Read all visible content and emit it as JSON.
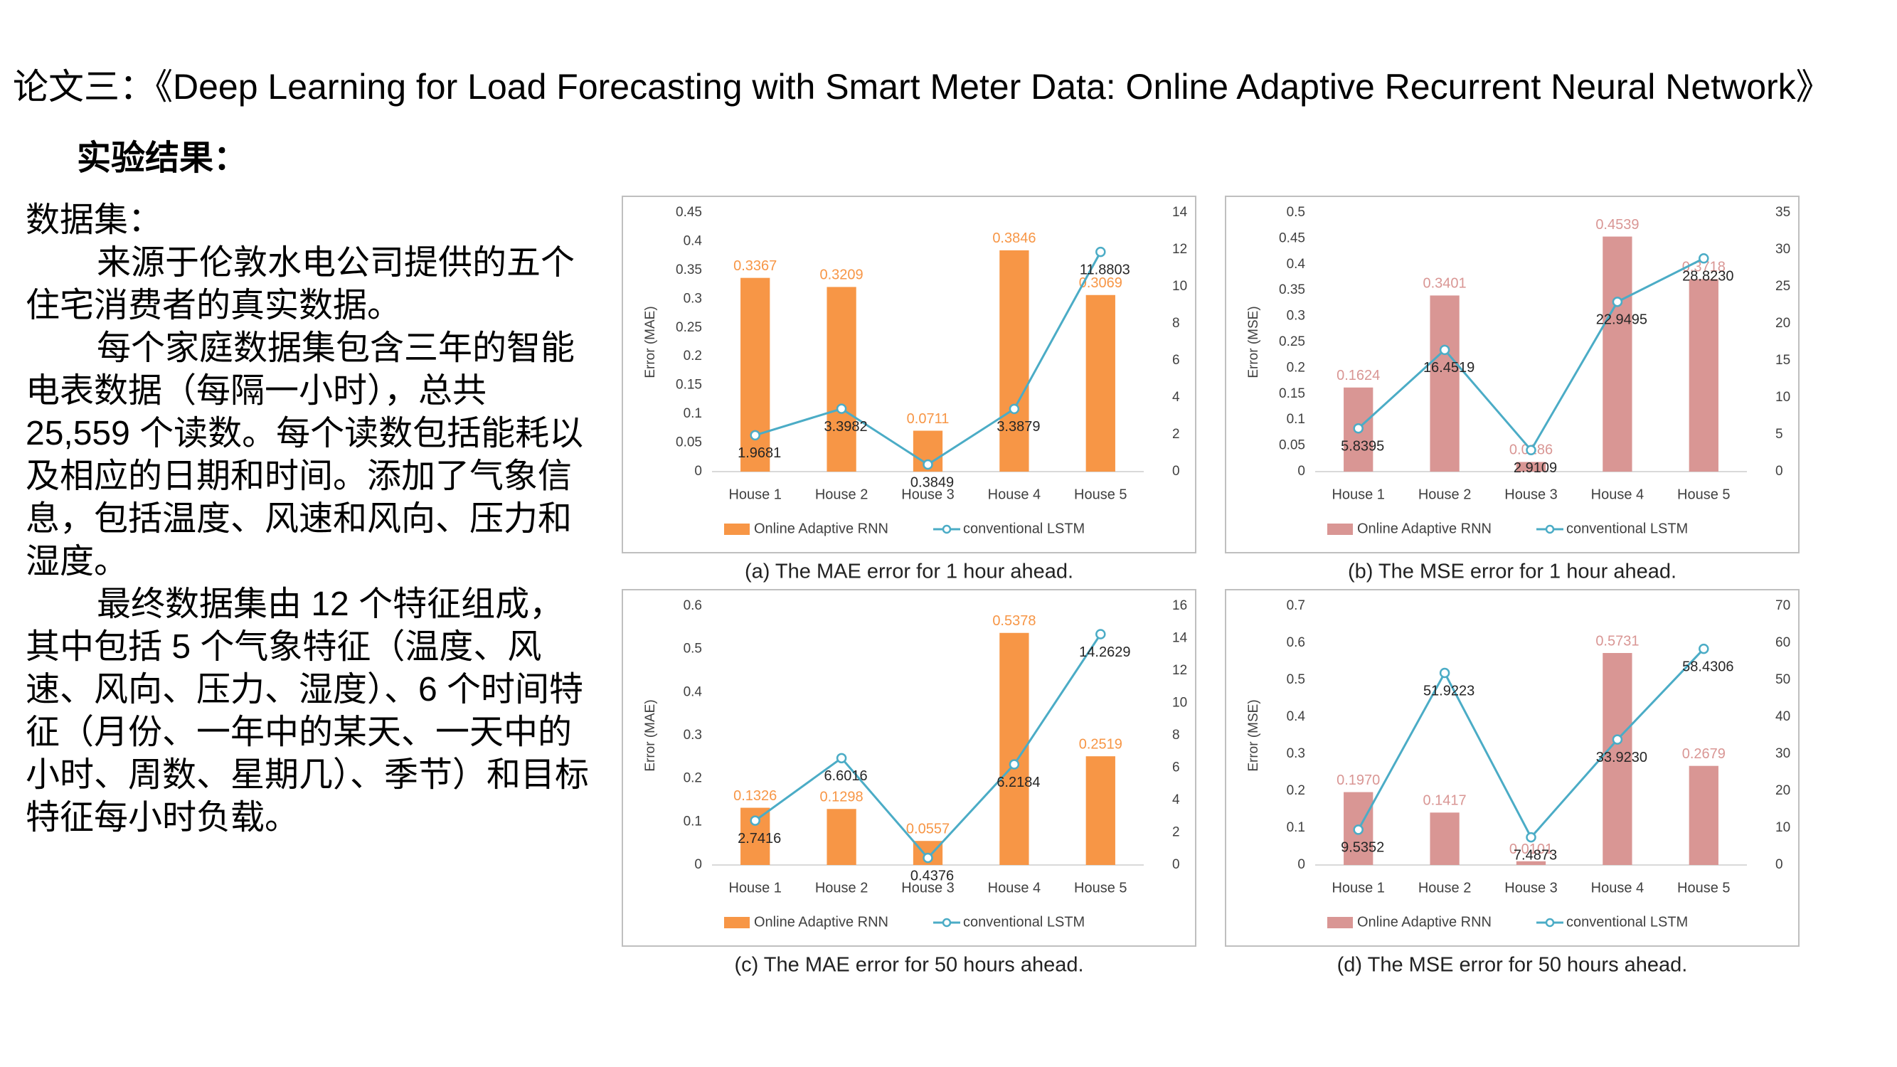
{
  "slide": {
    "title": "论文三：《Deep Learning for Load Forecasting with Smart Meter Data: Online Adaptive Recurrent Neural Network》",
    "heading": "实验结果：",
    "body": [
      "数据集：",
      "来源于伦敦水电公司提供的五个住宅消费者的真实数据。",
      "每个家庭数据集包含三年的智能电表数据（每隔一小时），总共 25,559 个读数。每个读数包括能耗以及相应的日期和时间。添加了气象信息，包括温度、风速和风向、压力和湿度。",
      "最终数据集由 12 个特征组成，其中包括 5 个气象特征（温度、风速、风向、压力、湿度）、6 个时间特征（月份、一年中的某天、一天中的小时、周数、星期几）、季节）和目标特征每小时负载。"
    ]
  },
  "chart_data": [
    {
      "type": "combo",
      "caption": "(a) The MAE error for 1 hour ahead.",
      "ylabel": "Error (MAE)",
      "categories": [
        "House 1",
        "House 2",
        "House 3",
        "House 4",
        "House 5"
      ],
      "series": [
        {
          "name": "Online Adaptive RNN",
          "type": "bar",
          "color": "#f79646",
          "values": [
            0.3367,
            0.3209,
            0.0711,
            0.3846,
            0.3069
          ]
        },
        {
          "name": "conventional LSTM",
          "type": "line",
          "axis": "y2",
          "color": "#4bacc6",
          "values": [
            1.9681,
            3.3982,
            0.3849,
            3.3879,
            11.8803
          ]
        }
      ],
      "ylim": [
        0,
        0.45
      ],
      "yticks": [
        0,
        0.05,
        0.1,
        0.15,
        0.2,
        0.25,
        0.3,
        0.35,
        0.4,
        0.45
      ],
      "y2lim": [
        0,
        14
      ],
      "y2ticks": [
        0,
        2,
        4,
        6,
        8,
        10,
        12,
        14
      ],
      "grid": false
    },
    {
      "type": "combo",
      "caption": "(b) The MSE error for 1 hour ahead.",
      "ylabel": "Error (MSE)",
      "categories": [
        "House 1",
        "House 2",
        "House 3",
        "House 4",
        "House 5"
      ],
      "series": [
        {
          "name": "Online Adaptive RNN",
          "type": "bar",
          "color": "#d99694",
          "values": [
            0.1624,
            0.3401,
            0.0186,
            0.4539,
            0.3718
          ]
        },
        {
          "name": "conventional LSTM",
          "type": "line",
          "axis": "y2",
          "color": "#4bacc6",
          "values": [
            5.8395,
            16.4519,
            2.9109,
            22.9495,
            28.823
          ],
          "value_labels": [
            "5.8395",
            "16.4519",
            "2.9109",
            "22.9495",
            "28.8230"
          ]
        }
      ],
      "ylim": [
        0,
        0.5
      ],
      "yticks": [
        0,
        0.05,
        0.1,
        0.15,
        0.2,
        0.25,
        0.3,
        0.35,
        0.4,
        0.45,
        0.5
      ],
      "y2lim": [
        0,
        35
      ],
      "y2ticks": [
        0,
        5,
        10,
        15,
        20,
        25,
        30,
        35
      ],
      "grid": false
    },
    {
      "type": "combo",
      "caption": "(c) The MAE error for 50 hours ahead.",
      "ylabel": "Error (MAE)",
      "categories": [
        "House 1",
        "House 2",
        "House 3",
        "House 4",
        "House 5"
      ],
      "series": [
        {
          "name": "Online Adaptive RNN",
          "type": "bar",
          "color": "#f79646",
          "values": [
            0.1326,
            0.1298,
            0.0557,
            0.5378,
            0.2519
          ]
        },
        {
          "name": "conventional LSTM",
          "type": "line",
          "axis": "y2",
          "color": "#4bacc6",
          "values": [
            2.7416,
            6.6016,
            0.4376,
            6.2184,
            14.2629
          ]
        }
      ],
      "ylim": [
        0,
        0.6
      ],
      "yticks": [
        0,
        0.1,
        0.2,
        0.3,
        0.4,
        0.5,
        0.6
      ],
      "y2lim": [
        0,
        16
      ],
      "y2ticks": [
        0,
        2,
        4,
        6,
        8,
        10,
        12,
        14,
        16
      ],
      "grid": false
    },
    {
      "type": "combo",
      "caption": "(d) The MSE error for 50 hours ahead.",
      "ylabel": "Error (MSE)",
      "categories": [
        "House 1",
        "House 2",
        "House 3",
        "House 4",
        "House 5"
      ],
      "series": [
        {
          "name": "Online Adaptive RNN",
          "type": "bar",
          "color": "#d99694",
          "values": [
            0.197,
            0.1417,
            0.0101,
            0.5731,
            0.2679
          ],
          "value_labels": [
            "0.1970",
            "0.1417",
            "0.0101",
            "0.5731",
            "0.2679"
          ]
        },
        {
          "name": "conventional LSTM",
          "type": "line",
          "axis": "y2",
          "color": "#4bacc6",
          "values": [
            9.5352,
            51.9223,
            7.4873,
            33.923,
            58.4306
          ],
          "value_labels": [
            "9.5352",
            "51.9223",
            "7.4873",
            "33.9230",
            "58.4306"
          ]
        }
      ],
      "ylim": [
        0,
        0.7
      ],
      "yticks": [
        0,
        0.1,
        0.2,
        0.3,
        0.4,
        0.5,
        0.6,
        0.7
      ],
      "y2lim": [
        0,
        70
      ],
      "y2ticks": [
        0,
        10,
        20,
        30,
        40,
        50,
        60,
        70
      ],
      "grid": false
    }
  ]
}
